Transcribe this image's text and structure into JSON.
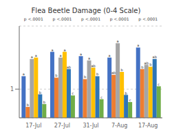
{
  "chart_data": {
    "type": "bar",
    "title": "Flea Beetle Damage (0-4 Scale)",
    "categories": [
      "17-Jul",
      "27-Jul",
      "31-Jul",
      "7-Aug",
      "17-Aug"
    ],
    "series": [
      {
        "color": "#4472C4",
        "values": [
          1.45,
          2.3,
          2.15,
          2.1,
          2.45
        ],
        "letters": [
          "a",
          "a",
          "a",
          "a",
          "a"
        ]
      },
      {
        "color": "#ED7D31",
        "values": [
          0.38,
          1.4,
          1.35,
          1.5,
          1.7
        ],
        "letters": [
          "b",
          "b",
          "b",
          "ab",
          "b"
        ]
      },
      {
        "color": "#A5A5A5",
        "values": [
          2.05,
          2.1,
          2.0,
          2.6,
          1.85
        ],
        "letters": [
          "a",
          "a",
          "a",
          "a",
          "ab"
        ]
      },
      {
        "color": "#FFC000",
        "values": [
          2.1,
          2.3,
          1.75,
          1.6,
          1.78
        ],
        "letters": [
          "a",
          "a",
          "ab",
          "b",
          "b"
        ]
      },
      {
        "color": "#2E75B6",
        "values": [
          0.82,
          1.7,
          1.45,
          0.8,
          2.05
        ],
        "letters": [
          "b",
          "ab",
          "b",
          "b",
          "ab"
        ]
      },
      {
        "color": "#70AD47",
        "values": [
          0.48,
          0.78,
          0.65,
          0.55,
          1.1
        ],
        "letters": [
          "b",
          "c",
          "c",
          "c",
          "c"
        ]
      }
    ],
    "annotations": [
      "p <.0001",
      "p <.0001",
      "p <.0001",
      "p <.0001",
      "p <.0001"
    ],
    "ylim": [
      0,
      3.2
    ],
    "yticks": [
      1
    ],
    "grid": true
  }
}
